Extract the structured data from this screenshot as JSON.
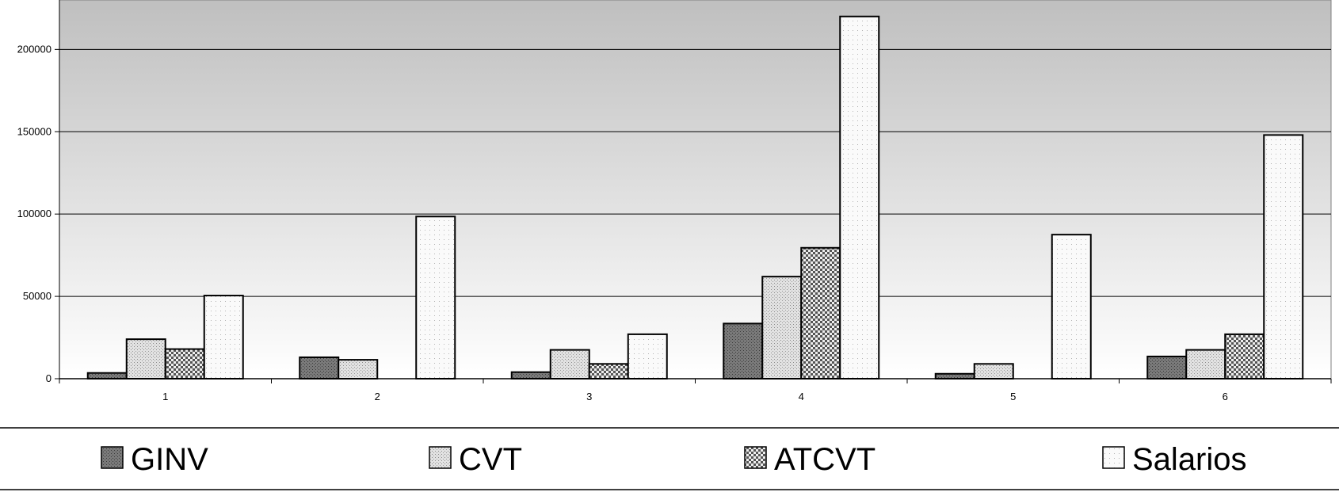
{
  "chart_data": {
    "type": "bar",
    "title": "",
    "xlabel": "",
    "ylabel": "",
    "categories": [
      "1",
      "2",
      "3",
      "4",
      "5",
      "6"
    ],
    "series": [
      {
        "name": "GINV",
        "values": [
          3500,
          13000,
          4000,
          33500,
          3000,
          13500
        ],
        "fill": "#7a7a7a",
        "pattern": "dense-dots"
      },
      {
        "name": "CVT",
        "values": [
          24000,
          11500,
          17500,
          62000,
          9000,
          17500
        ],
        "fill": "#d8d8d8",
        "pattern": "fine-dots"
      },
      {
        "name": "ATCVT",
        "values": [
          18000,
          0,
          9000,
          79500,
          0,
          27000
        ],
        "fill": "#bdbdbd",
        "pattern": "checker"
      },
      {
        "name": "Salarios",
        "values": [
          50500,
          98500,
          27000,
          220000,
          87500,
          148000
        ],
        "fill": "#f7f7f7",
        "pattern": "sparse-dots"
      }
    ],
    "y_ticks": [
      0,
      50000,
      100000,
      150000,
      200000
    ],
    "ylim": [
      0,
      230000
    ],
    "grid": true,
    "legend": "bottom",
    "colors": {
      "plot_gradient_top": "#bfbfbf",
      "plot_gradient_bottom": "#ffffff",
      "gridline": "#000000",
      "bar_outline": "#000000"
    }
  }
}
